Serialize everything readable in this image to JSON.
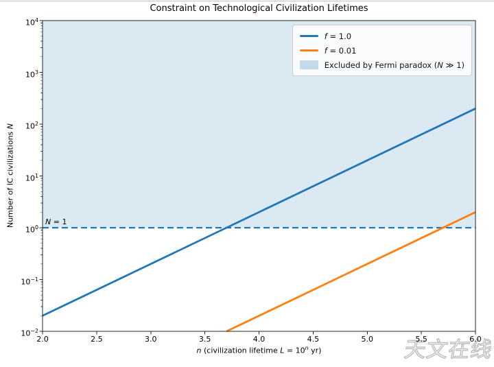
{
  "page": {
    "background": "#ffffff"
  },
  "chart_data": {
    "type": "line",
    "title": "Constraint on Technological Civilization Lifetimes",
    "xlabel": "n  (civilization lifetime L = 10ⁿ yr)",
    "ylabel": "Number of IC civilizations N",
    "xscale": "linear",
    "yscale": "log",
    "xlim": [
      2.0,
      6.0
    ],
    "ylim": [
      0.01,
      10000
    ],
    "ylim_exponents": [
      -2,
      4
    ],
    "x_ticks": [
      2.0,
      2.5,
      3.0,
      3.5,
      4.0,
      4.5,
      5.0,
      5.5,
      6.0
    ],
    "x_tick_labels": [
      "2.0",
      "2.5",
      "3.0",
      "3.5",
      "4.0",
      "4.5",
      "5.0",
      "5.5",
      "6.0"
    ],
    "y_tick_exponents": [
      4,
      3,
      2,
      1,
      0,
      -1,
      -2
    ],
    "y_tick_labels": [
      "10⁴",
      "10³",
      "10²",
      "10¹",
      "10⁰",
      "10⁻¹",
      "10⁻²"
    ],
    "grid": false,
    "series": [
      {
        "name": "f = 1.0",
        "color": "#1f77b4",
        "style": "solid",
        "x": [
          2.0,
          6.0
        ],
        "y": [
          0.02,
          200
        ]
      },
      {
        "name": "f = 0.01",
        "color": "#ff7f0e",
        "style": "solid",
        "x": [
          3.7,
          6.0
        ],
        "y": [
          0.01,
          2
        ]
      }
    ],
    "reference_line": {
      "label": "N = 1",
      "y": 1.0,
      "color": "#1f77b4",
      "style": "dashed"
    },
    "excluded_region": {
      "label": "Excluded by Fermi paradox (N ≫ 1)",
      "y_from": 1.0,
      "y_to": 10000,
      "color": "#1f77b4",
      "alpha": 0.16
    },
    "legend": {
      "position": "upper right",
      "entries": [
        {
          "type": "line",
          "color": "#1f77b4",
          "label": "f = 1.0"
        },
        {
          "type": "line",
          "color": "#ff7f0e",
          "label": "f = 0.01"
        },
        {
          "type": "patch",
          "color": "#1f77b4",
          "alpha": 0.25,
          "label": "Excluded by Fermi paradox (N ≫ 1)"
        }
      ]
    }
  },
  "watermark": {
    "text": "天文在线"
  }
}
